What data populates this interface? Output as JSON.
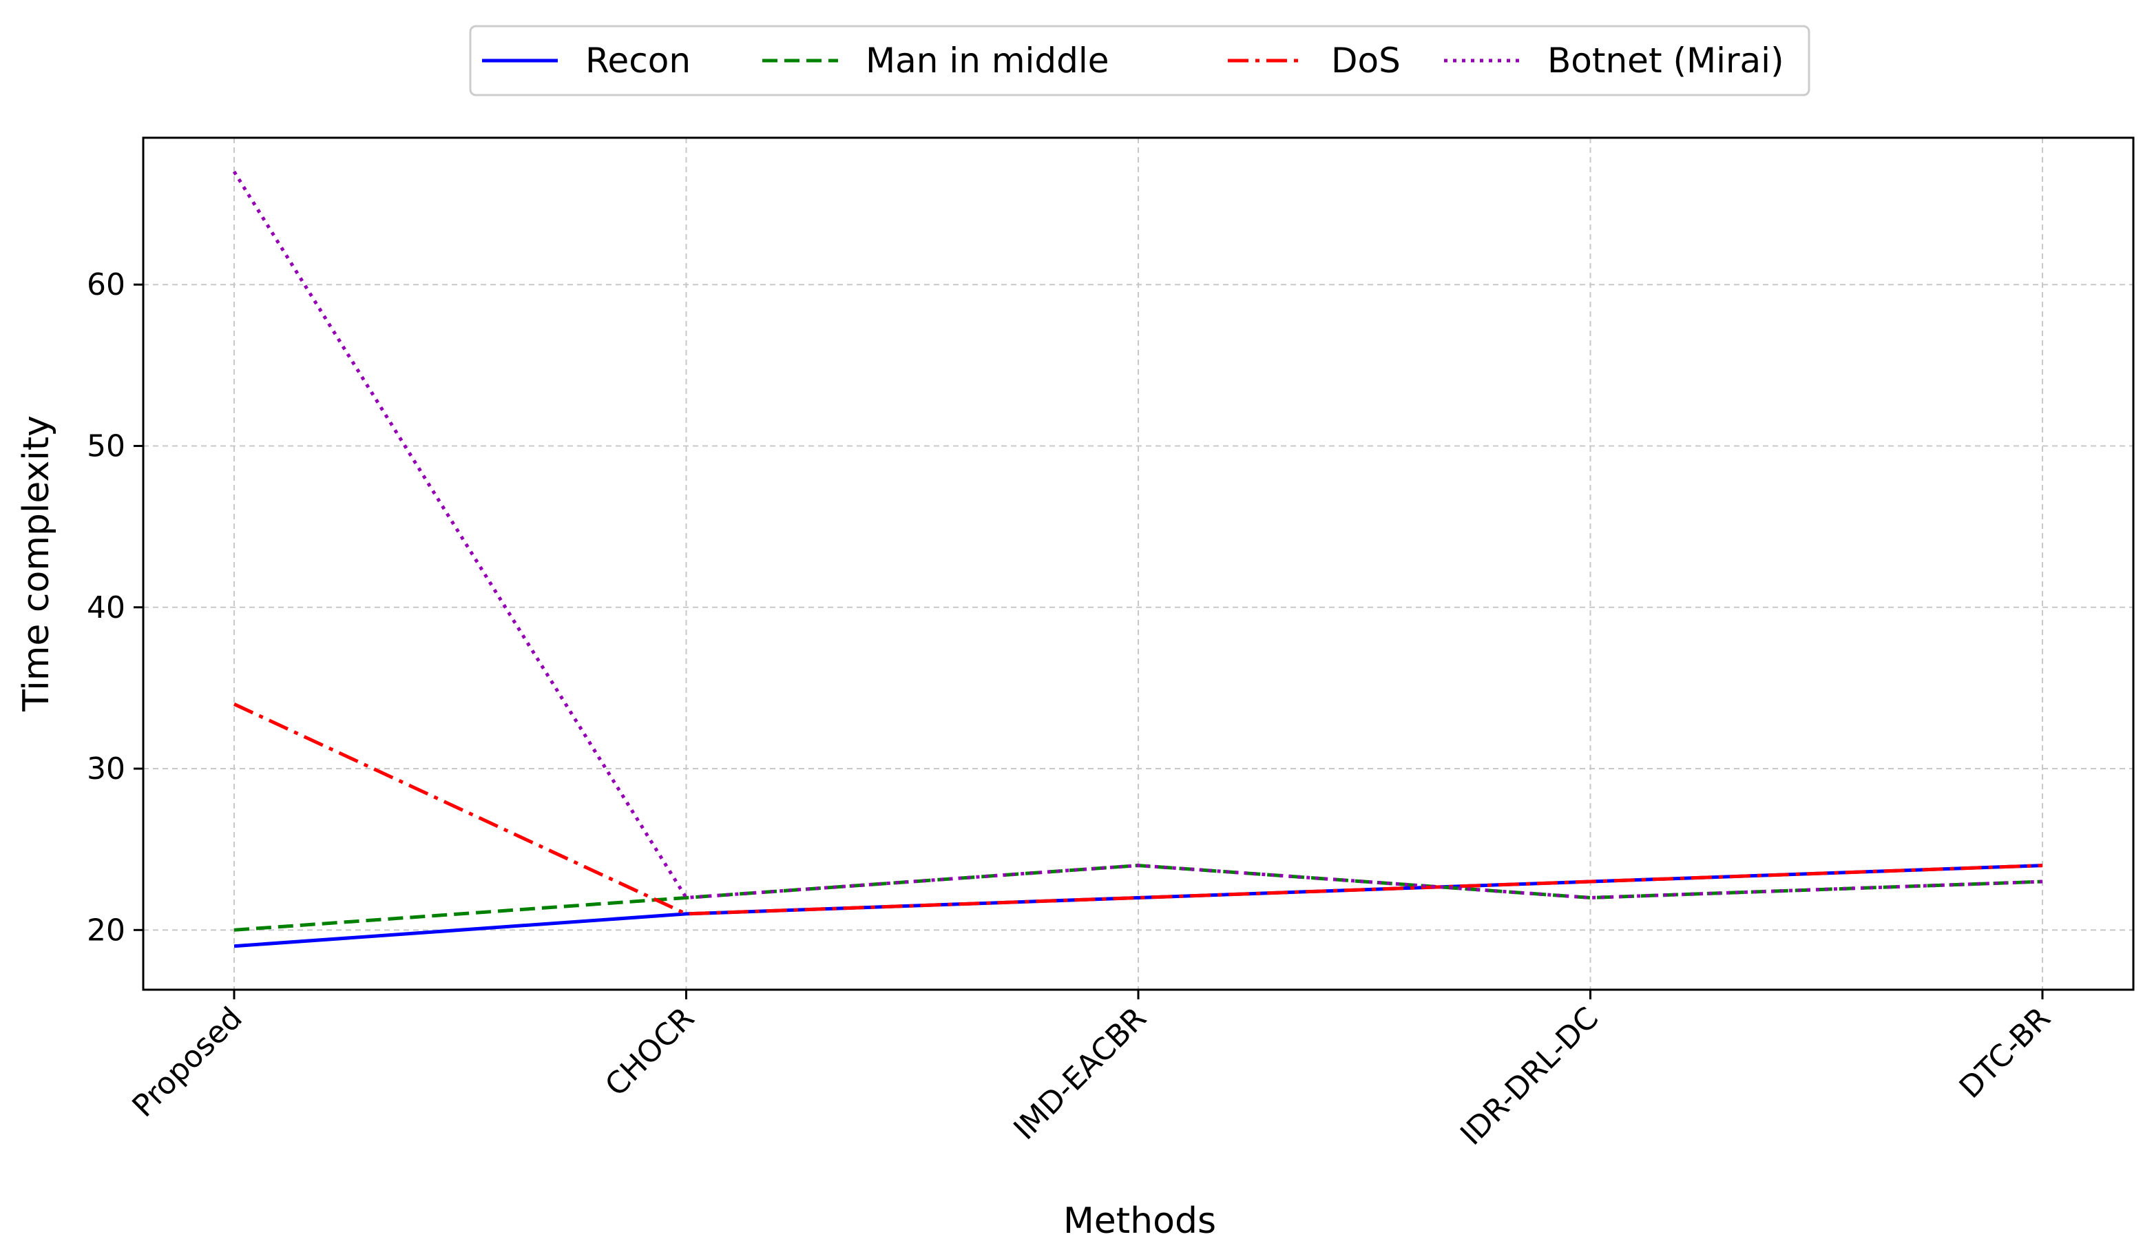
{
  "chart_data": {
    "type": "line",
    "title": "",
    "xlabel": "Methods",
    "ylabel": "Time complexity",
    "categories": [
      "Proposed",
      "CHOCR",
      "IMD-EACBR",
      "IDR-DRL-DC",
      "DTC-BR"
    ],
    "ylim": [
      16.3,
      69.1
    ],
    "yticks": [
      20,
      30,
      40,
      50,
      60
    ],
    "grid": true,
    "legend_position": "top-center",
    "series": [
      {
        "name": "Recon",
        "values": [
          19,
          21,
          22,
          23,
          24
        ],
        "color": "#0000ff",
        "style": "solid"
      },
      {
        "name": "Man in middle",
        "values": [
          20,
          22,
          24,
          22,
          23
        ],
        "color": "#008000",
        "style": "dashed"
      },
      {
        "name": "DoS",
        "values": [
          34,
          21,
          22,
          23,
          24
        ],
        "color": "#ff0000",
        "style": "dashdot"
      },
      {
        "name": "Botnet (Mirai)",
        "values": [
          67,
          22,
          24,
          22,
          23
        ],
        "color": "#9400b3",
        "style": "dotted"
      }
    ]
  }
}
